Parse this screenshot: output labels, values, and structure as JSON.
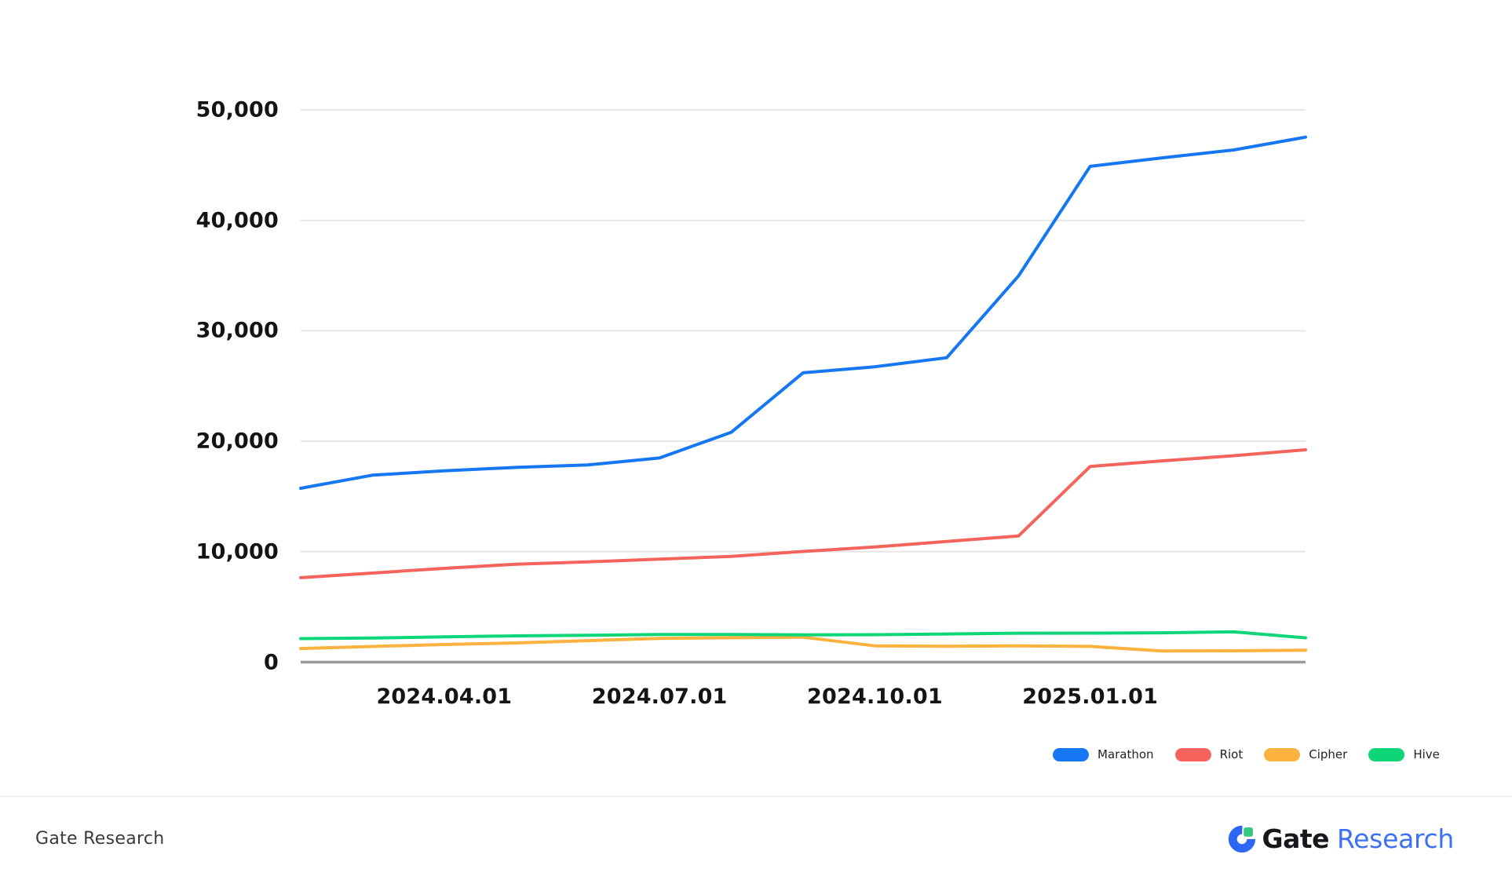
{
  "chart_data": {
    "type": "line",
    "title": "",
    "xlabel": "",
    "ylabel": "",
    "ylim": [
      0,
      50000
    ],
    "grid": "horizontal",
    "legend_position": "bottom-right",
    "n_points": 15,
    "x_ticks": [
      {
        "index": 2,
        "label": "2024.04.01"
      },
      {
        "index": 5,
        "label": "2024.07.01"
      },
      {
        "index": 8,
        "label": "2024.10.01"
      },
      {
        "index": 11,
        "label": "2025.01.01"
      }
    ],
    "y_ticks": [
      {
        "value": 0,
        "label": "0"
      },
      {
        "value": 10000,
        "label": "10,000"
      },
      {
        "value": 20000,
        "label": "20,000"
      },
      {
        "value": 30000,
        "label": "30,000"
      },
      {
        "value": 40000,
        "label": "40,000"
      },
      {
        "value": 50000,
        "label": "50,000"
      }
    ],
    "series": [
      {
        "name": "Marathon",
        "color": "#1677F2",
        "values": [
          15741,
          16930,
          17320,
          17631,
          17857,
          18488,
          20818,
          26200,
          26747,
          27562,
          34959,
          44893,
          45659,
          46374,
          47531
        ]
      },
      {
        "name": "Riot",
        "color": "#F5645C",
        "values": [
          7648,
          8067,
          8490,
          8872,
          9084,
          9334,
          9574,
          10019,
          10427,
          10928,
          11425,
          17722,
          18221,
          18692,
          19223
        ]
      },
      {
        "name": "Cipher",
        "color": "#FBB23E",
        "values": [
          1240,
          1420,
          1600,
          1740,
          1950,
          2150,
          2210,
          2260,
          1480,
          1440,
          1470,
          1430,
          1010,
          1030,
          1080
        ]
      },
      {
        "name": "Hive",
        "color": "#0ED678",
        "values": [
          2130,
          2180,
          2290,
          2380,
          2430,
          2500,
          2500,
          2470,
          2490,
          2550,
          2620,
          2630,
          2660,
          2740,
          2200
        ]
      }
    ]
  },
  "colors": {
    "grid": "#E6E6E6",
    "axis": "#999999",
    "tick_label": "#141414",
    "legend_text": "#222222"
  },
  "footer": {
    "left_text": "Gate Research",
    "logo_gate": "Gate",
    "logo_research": "Research"
  }
}
